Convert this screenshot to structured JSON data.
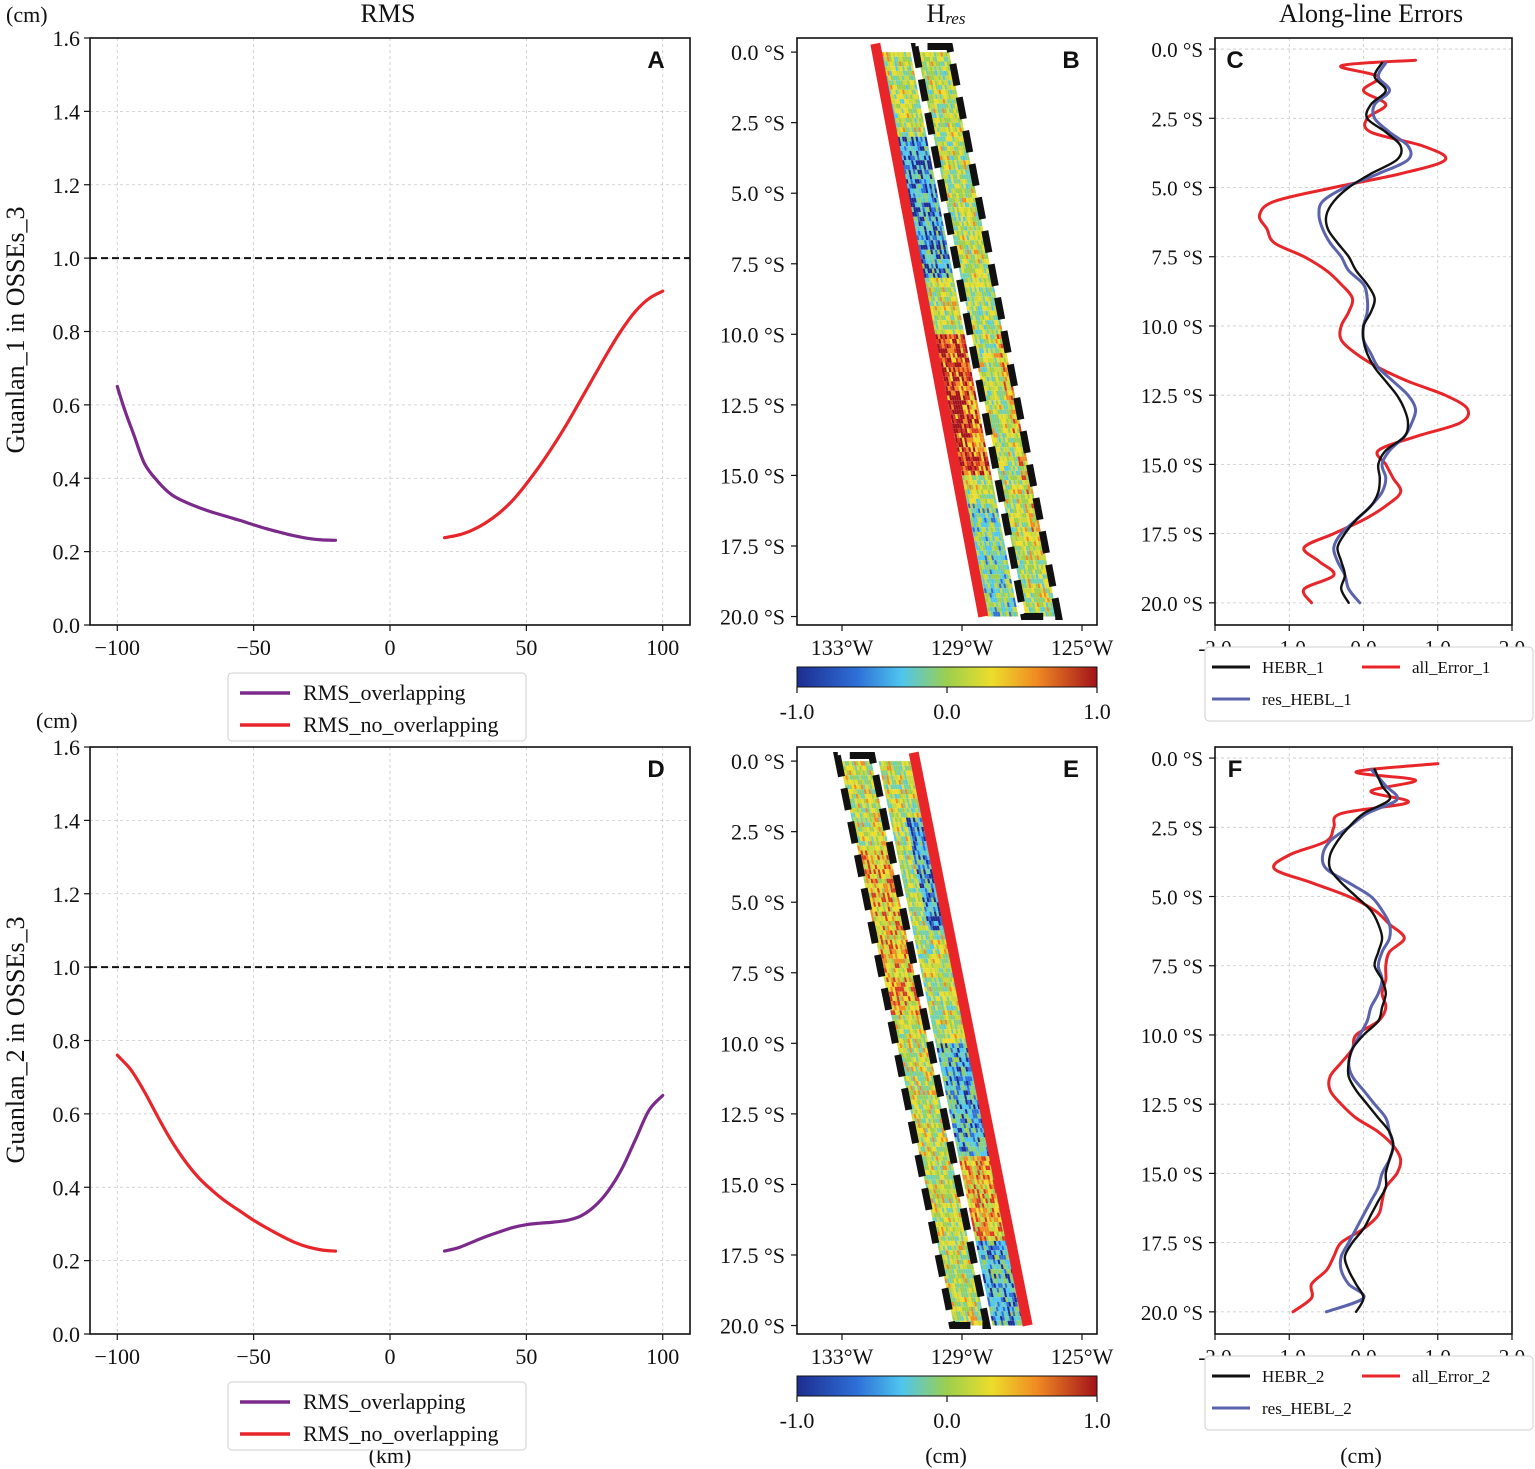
{
  "figure": {
    "col_titles": {
      "rms": "RMS",
      "hres_main": "H",
      "hres_sub": "res",
      "along": "Along-line Errors"
    },
    "row_ylabels": [
      "Guanlan_1 in OSSEs_3",
      "Guanlan_2 in OSSEs_3"
    ],
    "unit_cm": "(cm)",
    "bottom_labels": {
      "rms": "(km)",
      "hres": "(cm)",
      "along": "(cm)"
    },
    "colors": {
      "overlap": "#7b2a8b",
      "nooverlap": "#e8262a",
      "hebr": "#111111",
      "resHebl": "#5b63ad",
      "allError": "#e8262a",
      "swathEdge": "#e8262a"
    }
  },
  "chart_data": [
    {
      "id": "A",
      "letter": "A",
      "type": "line",
      "title": "RMS",
      "xlabel": "(km)",
      "ylabel": "Guanlan_1 in OSSEs_3",
      "xlim": [
        -110,
        110
      ],
      "ylim": [
        0,
        1.6
      ],
      "xticks": [
        -100,
        -50,
        0,
        50,
        100
      ],
      "xticklabels": [
        "−100",
        "−50",
        "0",
        "50",
        "100"
      ],
      "yticks": [
        0,
        0.2,
        0.4,
        0.6,
        0.8,
        1.0,
        1.2,
        1.4,
        1.6
      ],
      "yticklabels": [
        "0.0",
        "0.2",
        "0.4",
        "0.6",
        "0.8",
        "1.0",
        "1.2",
        "1.4",
        "1.6"
      ],
      "hline": 1.0,
      "legend_labels": [
        "RMS_overlapping",
        "RMS_no_overlapping"
      ],
      "series": [
        {
          "name": "RMS_overlapping",
          "color": "#7b2a8b",
          "x": [
            -100,
            -97,
            -94,
            -90,
            -85,
            -80,
            -75,
            -70,
            -65,
            -60,
            -55,
            -50,
            -45,
            -40,
            -35,
            -30,
            -25,
            -20
          ],
          "y": [
            0.65,
            0.58,
            0.52,
            0.44,
            0.39,
            0.355,
            0.335,
            0.32,
            0.307,
            0.296,
            0.285,
            0.273,
            0.262,
            0.252,
            0.243,
            0.236,
            0.232,
            0.231
          ]
        },
        {
          "name": "RMS_no_overlapping",
          "color": "#e8262a",
          "x": [
            20,
            25,
            30,
            35,
            40,
            45,
            50,
            55,
            60,
            65,
            70,
            75,
            80,
            85,
            90,
            95,
            100
          ],
          "y": [
            0.238,
            0.245,
            0.258,
            0.278,
            0.305,
            0.34,
            0.385,
            0.435,
            0.49,
            0.55,
            0.615,
            0.68,
            0.745,
            0.805,
            0.855,
            0.89,
            0.91
          ]
        }
      ]
    },
    {
      "id": "B",
      "letter": "B",
      "type": "heatmap",
      "title": "Hres",
      "xlim": [
        134.5,
        124.5
      ],
      "ylim": [
        20.3,
        -0.5
      ],
      "xtick_vals": [
        133,
        129,
        125
      ],
      "xticklabels": [
        "133°W",
        "129°W",
        "125°W"
      ],
      "ytick_vals": [
        0,
        2.5,
        5,
        7.5,
        10,
        12.5,
        15,
        17.5,
        20
      ],
      "yticklabels": [
        "0.0 °S",
        "2.5 °S",
        "5.0 °S",
        "7.5 °S",
        "10.0 °S",
        "12.5 °S",
        "15.0 °S",
        "17.5 °S",
        "20.0 °S"
      ],
      "orientation": "B",
      "colorbar": {
        "min": -1.0,
        "max": 1.0,
        "ticklabels": [
          "-1.0",
          "0.0",
          "1.0"
        ]
      },
      "xlabel": "(cm)"
    },
    {
      "id": "C",
      "letter": "C",
      "type": "line",
      "title": "Along-line Errors",
      "xlim": [
        -2.0,
        2.0
      ],
      "ylim": [
        20.8,
        -0.4
      ],
      "xticks": [
        -2,
        -1,
        0,
        1,
        2
      ],
      "xticklabels": [
        "-2.0",
        "-1.0",
        "0.0",
        "1.0",
        "2.0"
      ],
      "yticks": [
        0,
        2.5,
        5,
        7.5,
        10,
        12.5,
        15,
        17.5,
        20
      ],
      "yticklabels": [
        "0.0 °S",
        "2.5 °S",
        "5.0 °S",
        "7.5 °S",
        "10.0 °S",
        "12.5 °S",
        "15.0 °S",
        "17.5 °S",
        "20.0 °S"
      ],
      "legend_labels": [
        "HEBR_1",
        "all_Error_1",
        "res_HEBL_1"
      ],
      "series": [
        {
          "name": "HEBR_1",
          "color": "#111111",
          "lat": [
            0.5,
            1.0,
            1.5,
            2.0,
            2.5,
            3.0,
            3.5,
            4.0,
            4.5,
            5.0,
            5.5,
            6.0,
            6.5,
            7.0,
            7.5,
            8.0,
            8.5,
            9.0,
            9.5,
            10.0,
            10.5,
            11.0,
            11.5,
            12.0,
            12.5,
            13.0,
            13.5,
            14.0,
            14.5,
            15.0,
            15.5,
            16.0,
            16.5,
            17.0,
            17.5,
            18.0,
            18.5,
            19.0,
            19.5,
            20.0
          ],
          "val": [
            0.25,
            0.15,
            0.3,
            0.1,
            0.05,
            0.3,
            0.5,
            0.45,
            0.1,
            -0.2,
            -0.4,
            -0.5,
            -0.48,
            -0.35,
            -0.2,
            -0.1,
            0.05,
            0.15,
            0.1,
            0.0,
            0.0,
            0.05,
            0.15,
            0.3,
            0.45,
            0.55,
            0.6,
            0.55,
            0.3,
            0.2,
            0.22,
            0.2,
            0.1,
            -0.1,
            -0.25,
            -0.35,
            -0.3,
            -0.25,
            -0.3,
            -0.2
          ]
        },
        {
          "name": "res_HEBL_1",
          "color": "#5b63ad",
          "lat": [
            0.5,
            1.0,
            1.5,
            2.0,
            2.5,
            3.0,
            3.5,
            4.0,
            4.5,
            5.0,
            5.5,
            6.0,
            6.5,
            7.0,
            7.5,
            8.0,
            8.5,
            9.0,
            9.5,
            10.0,
            10.5,
            11.0,
            11.5,
            12.0,
            12.5,
            13.0,
            13.5,
            14.0,
            14.5,
            15.0,
            15.5,
            16.0,
            16.5,
            17.0,
            17.5,
            18.0,
            18.5,
            19.0,
            19.5,
            20.0
          ],
          "val": [
            0.3,
            0.2,
            0.35,
            0.15,
            0.15,
            0.35,
            0.6,
            0.6,
            0.2,
            -0.25,
            -0.55,
            -0.6,
            -0.55,
            -0.45,
            -0.3,
            -0.2,
            0.0,
            0.05,
            0.05,
            0.0,
            0.0,
            0.1,
            0.2,
            0.4,
            0.6,
            0.7,
            0.65,
            0.55,
            0.35,
            0.25,
            0.3,
            0.25,
            0.1,
            -0.1,
            -0.3,
            -0.4,
            -0.35,
            -0.25,
            -0.2,
            -0.05
          ]
        },
        {
          "name": "all_Error_1",
          "color": "#e8262a",
          "lat": [
            0.4,
            0.6,
            1.0,
            1.5,
            2.0,
            2.5,
            3.0,
            3.5,
            4.0,
            4.5,
            5.0,
            5.5,
            6.0,
            6.5,
            7.0,
            7.5,
            8.0,
            8.5,
            9.0,
            9.5,
            10.0,
            10.5,
            11.0,
            11.5,
            12.0,
            12.5,
            13.0,
            13.5,
            14.0,
            14.5,
            15.0,
            15.5,
            16.0,
            16.5,
            17.0,
            17.5,
            18.0,
            18.5,
            19.0,
            19.5,
            20.0
          ],
          "val": [
            0.7,
            -0.3,
            0.2,
            0.0,
            0.3,
            0.05,
            0.1,
            0.8,
            1.1,
            0.5,
            -0.4,
            -1.2,
            -1.4,
            -1.3,
            -1.2,
            -0.8,
            -0.5,
            -0.3,
            -0.15,
            -0.2,
            -0.3,
            -0.3,
            -0.1,
            0.2,
            0.6,
            1.1,
            1.4,
            1.3,
            0.7,
            0.2,
            0.3,
            0.4,
            0.5,
            0.3,
            0.0,
            -0.4,
            -0.8,
            -0.6,
            -0.4,
            -0.8,
            -0.7
          ]
        }
      ]
    },
    {
      "id": "D",
      "letter": "D",
      "type": "line",
      "xlabel": "(km)",
      "ylabel": "Guanlan_2 in OSSEs_3",
      "xlim": [
        -110,
        110
      ],
      "ylim": [
        0,
        1.6
      ],
      "xticks": [
        -100,
        -50,
        0,
        50,
        100
      ],
      "xticklabels": [
        "−100",
        "−50",
        "0",
        "50",
        "100"
      ],
      "yticks": [
        0,
        0.2,
        0.4,
        0.6,
        0.8,
        1.0,
        1.2,
        1.4,
        1.6
      ],
      "yticklabels": [
        "0.0",
        "0.2",
        "0.4",
        "0.6",
        "0.8",
        "1.0",
        "1.2",
        "1.4",
        "1.6"
      ],
      "hline": 1.0,
      "legend_labels": [
        "RMS_overlapping",
        "RMS_no_overlapping"
      ],
      "series": [
        {
          "name": "RMS_no_overlapping",
          "color": "#e8262a",
          "x": [
            -100,
            -95,
            -90,
            -85,
            -80,
            -75,
            -70,
            -65,
            -60,
            -55,
            -50,
            -45,
            -40,
            -35,
            -30,
            -25,
            -20
          ],
          "y": [
            0.76,
            0.72,
            0.66,
            0.59,
            0.525,
            0.47,
            0.425,
            0.39,
            0.36,
            0.335,
            0.31,
            0.288,
            0.268,
            0.25,
            0.237,
            0.229,
            0.226
          ]
        },
        {
          "name": "RMS_overlapping",
          "color": "#7b2a8b",
          "x": [
            20,
            25,
            30,
            35,
            40,
            45,
            50,
            55,
            60,
            65,
            70,
            75,
            80,
            85,
            90,
            95,
            100
          ],
          "y": [
            0.226,
            0.235,
            0.25,
            0.265,
            0.278,
            0.29,
            0.298,
            0.302,
            0.305,
            0.31,
            0.322,
            0.348,
            0.39,
            0.45,
            0.53,
            0.61,
            0.65
          ]
        }
      ]
    },
    {
      "id": "E",
      "letter": "E",
      "type": "heatmap",
      "xlim": [
        134.5,
        124.5
      ],
      "ylim": [
        20.3,
        -0.5
      ],
      "xtick_vals": [
        133,
        129,
        125
      ],
      "xticklabels": [
        "133°W",
        "129°W",
        "125°W"
      ],
      "ytick_vals": [
        0,
        2.5,
        5,
        7.5,
        10,
        12.5,
        15,
        17.5,
        20
      ],
      "yticklabels": [
        "0.0 °S",
        "2.5 °S",
        "5.0 °S",
        "7.5 °S",
        "10.0 °S",
        "12.5 °S",
        "15.0 °S",
        "17.5 °S",
        "20.0 °S"
      ],
      "orientation": "E",
      "colorbar": {
        "min": -1.0,
        "max": 1.0,
        "ticklabels": [
          "-1.0",
          "0.0",
          "1.0"
        ]
      },
      "xlabel": "(cm)"
    },
    {
      "id": "F",
      "letter": "F",
      "type": "line",
      "xlabel": "(cm)",
      "xlim": [
        -2.0,
        2.0
      ],
      "ylim": [
        20.8,
        -0.4
      ],
      "xticks": [
        -2,
        -1,
        0,
        1,
        2
      ],
      "xticklabels": [
        "-2.0",
        "-1.0",
        "0.0",
        "1.0",
        "2.0"
      ],
      "yticks": [
        0,
        2.5,
        5,
        7.5,
        10,
        12.5,
        15,
        17.5,
        20
      ],
      "yticklabels": [
        "0.0 °S",
        "2.5 °S",
        "5.0 °S",
        "7.5 °S",
        "10.0 °S",
        "12.5 °S",
        "15.0 °S",
        "17.5 °S",
        "20.0 °S"
      ],
      "legend_labels": [
        "HEBR_2",
        "all_Error_2",
        "res_HEBL_2"
      ],
      "series": [
        {
          "name": "HEBR_2",
          "color": "#111111",
          "lat": [
            0.4,
            1.0,
            1.5,
            2.0,
            2.5,
            3.0,
            3.5,
            4.0,
            4.5,
            5.0,
            5.5,
            6.0,
            6.5,
            7.0,
            7.5,
            8.0,
            8.5,
            9.0,
            9.5,
            10.0,
            10.5,
            11.0,
            11.5,
            12.0,
            12.5,
            13.0,
            13.5,
            14.0,
            14.5,
            15.0,
            15.5,
            16.0,
            16.5,
            17.0,
            17.5,
            18.0,
            18.5,
            19.0,
            19.5,
            20.0
          ],
          "val": [
            0.15,
            0.25,
            0.35,
            0.0,
            -0.2,
            -0.35,
            -0.45,
            -0.45,
            -0.3,
            -0.1,
            0.1,
            0.2,
            0.25,
            0.2,
            0.15,
            0.25,
            0.3,
            0.25,
            0.2,
            0.0,
            -0.15,
            -0.2,
            -0.2,
            -0.1,
            0.05,
            0.2,
            0.35,
            0.4,
            0.35,
            0.3,
            0.3,
            0.2,
            0.1,
            0.0,
            -0.15,
            -0.25,
            -0.2,
            -0.1,
            0.0,
            -0.1
          ]
        },
        {
          "name": "res_HEBL_2",
          "color": "#5b63ad",
          "lat": [
            0.4,
            1.0,
            1.5,
            2.0,
            2.5,
            3.0,
            3.5,
            4.0,
            4.5,
            5.0,
            5.5,
            6.0,
            6.5,
            7.0,
            7.5,
            8.0,
            8.5,
            9.0,
            9.5,
            10.0,
            10.5,
            11.0,
            11.5,
            12.0,
            12.5,
            13.0,
            13.5,
            14.0,
            14.5,
            15.0,
            15.5,
            16.0,
            16.5,
            17.0,
            17.5,
            18.0,
            18.5,
            19.0,
            19.5,
            20.0
          ],
          "val": [
            0.1,
            0.3,
            0.45,
            0.05,
            -0.2,
            -0.45,
            -0.55,
            -0.5,
            -0.2,
            0.1,
            0.25,
            0.35,
            0.35,
            0.25,
            0.2,
            0.25,
            0.2,
            0.1,
            0.05,
            -0.05,
            -0.15,
            -0.2,
            -0.15,
            0.0,
            0.15,
            0.3,
            0.35,
            0.4,
            0.35,
            0.25,
            0.2,
            0.1,
            0.0,
            -0.1,
            -0.2,
            -0.3,
            -0.3,
            -0.2,
            0.0,
            -0.5
          ]
        },
        {
          "name": "all_Error_2",
          "color": "#e8262a",
          "lat": [
            0.2,
            0.5,
            0.8,
            1.2,
            1.6,
            2.0,
            2.5,
            3.0,
            3.5,
            4.0,
            4.5,
            5.0,
            5.5,
            6.0,
            6.5,
            7.0,
            7.5,
            8.0,
            8.5,
            9.0,
            9.5,
            10.0,
            10.5,
            11.0,
            11.5,
            12.0,
            12.5,
            13.0,
            13.5,
            14.0,
            14.5,
            15.0,
            15.5,
            16.0,
            16.5,
            17.0,
            17.5,
            18.0,
            18.5,
            19.0,
            19.5,
            20.0
          ],
          "val": [
            1.0,
            -0.1,
            0.7,
            0.1,
            0.6,
            -0.3,
            -0.4,
            -0.5,
            -1.0,
            -1.2,
            -0.7,
            -0.2,
            0.15,
            0.35,
            0.55,
            0.35,
            0.3,
            0.3,
            0.25,
            0.3,
            0.2,
            -0.1,
            -0.15,
            -0.3,
            -0.45,
            -0.45,
            -0.3,
            -0.1,
            0.2,
            0.4,
            0.5,
            0.45,
            0.3,
            0.25,
            0.2,
            0.0,
            -0.3,
            -0.4,
            -0.5,
            -0.7,
            -0.7,
            -0.95
          ]
        }
      ]
    }
  ]
}
